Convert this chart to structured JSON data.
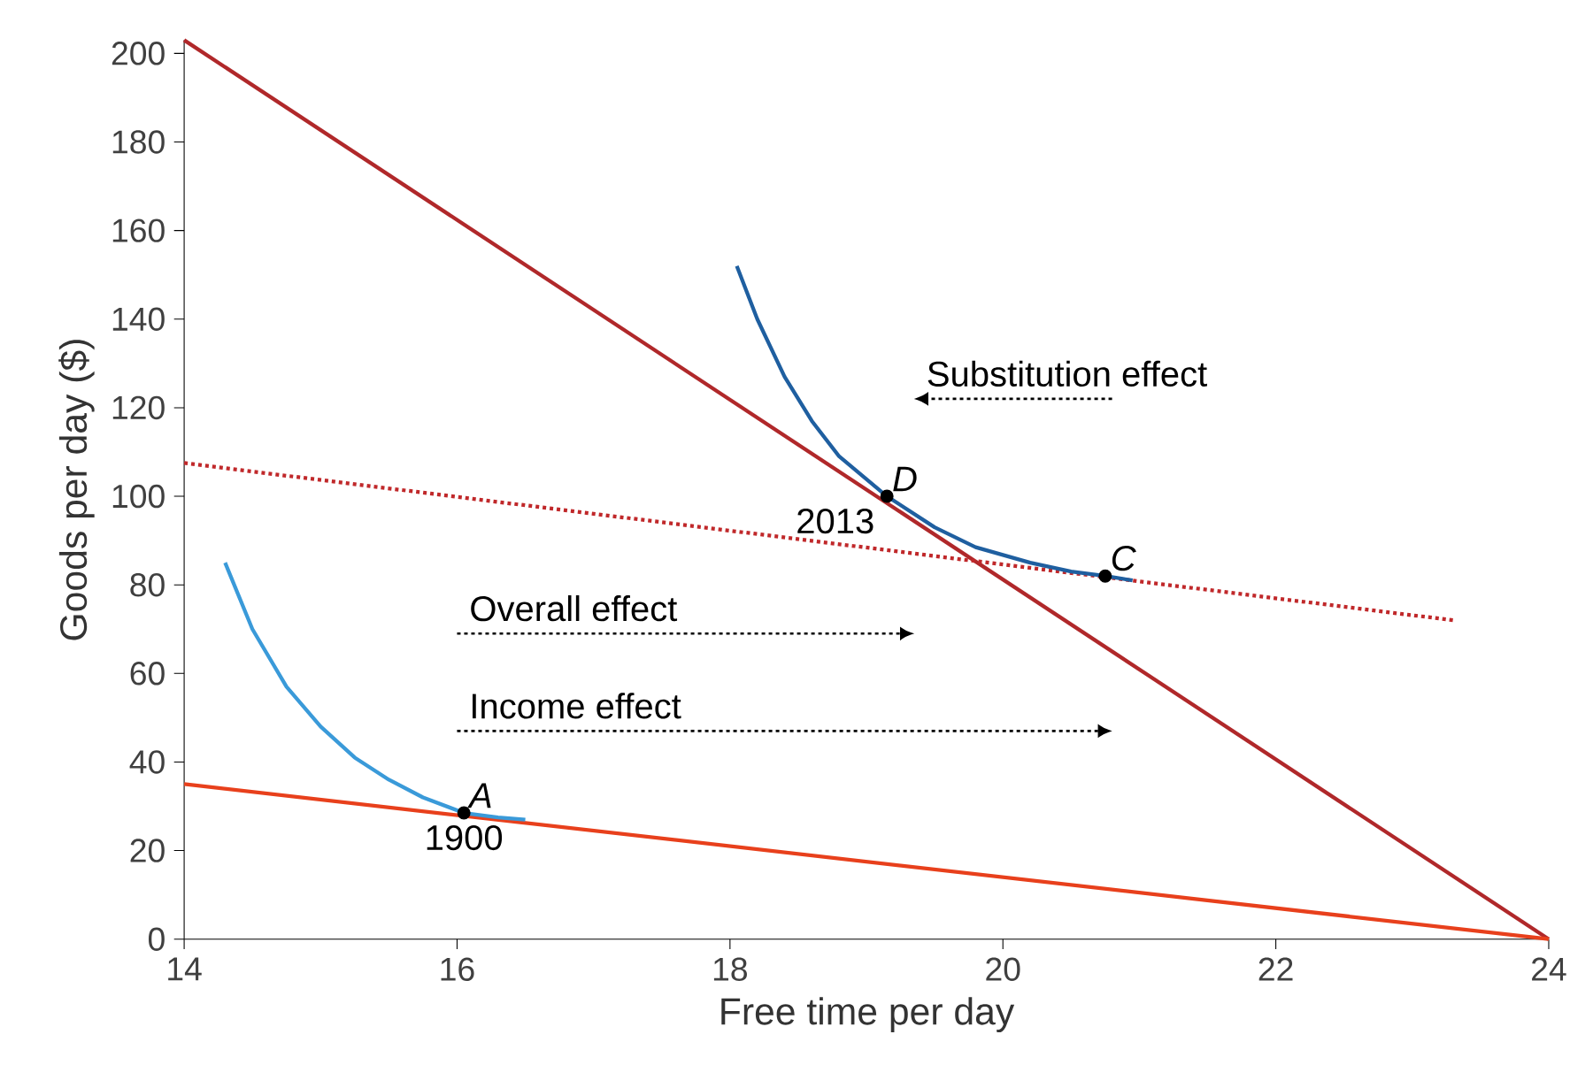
{
  "chart_data": {
    "type": "line",
    "xlabel": "Free time per day",
    "ylabel": "Goods per day ($)",
    "xlim": [
      14,
      24
    ],
    "ylim": [
      0,
      203
    ],
    "xticks": [
      14,
      16,
      18,
      20,
      22,
      24
    ],
    "yticks": [
      0,
      20,
      40,
      60,
      80,
      100,
      120,
      140,
      160,
      180,
      200
    ],
    "series": [
      {
        "color": "#b0282a",
        "x": [
          14,
          24
        ],
        "values": [
          203,
          0
        ],
        "line_style": "solid"
      },
      {
        "color": "#e8401c",
        "x": [
          14,
          24
        ],
        "values": [
          35,
          0
        ],
        "line_style": "solid"
      },
      {
        "color": "#c0282a",
        "x": [
          14,
          23.3
        ],
        "values": [
          107.5,
          72
        ],
        "line_style": "dotted"
      },
      {
        "color": "#3a9ad9",
        "x": [
          14.3,
          14.5,
          14.75,
          15,
          15.25,
          15.5,
          15.75,
          16.05,
          16.3,
          16.5
        ],
        "values": [
          85,
          70,
          57,
          48,
          41,
          36,
          32,
          28.5,
          27.5,
          27
        ],
        "line_style": "solid"
      },
      {
        "color": "#1f5fa0",
        "x": [
          18.05,
          18.2,
          18.4,
          18.6,
          18.8,
          19.15,
          19.5,
          19.8,
          20.2,
          20.5,
          20.75,
          20.95
        ],
        "values": [
          152,
          140,
          127,
          117,
          109,
          100,
          93,
          88.5,
          85,
          83,
          82,
          81
        ],
        "line_style": "solid"
      },
      {
        "type": "scatter",
        "color": "#000000",
        "x": [
          16.05,
          19.15,
          20.75
        ],
        "values": [
          28.5,
          100,
          82
        ],
        "value_labels": [
          "A",
          "D",
          "C"
        ]
      }
    ],
    "annotations": [
      "Substitution effect",
      "Overall effect",
      "Income effect",
      {
        "text": "1900",
        "x": 16.05,
        "y": 28.5
      },
      {
        "text": "2013",
        "x": 19.15,
        "y": 100
      }
    ]
  }
}
